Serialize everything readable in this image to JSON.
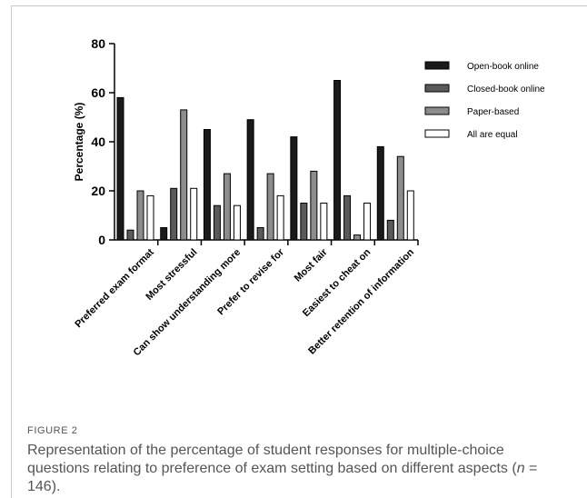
{
  "figure": {
    "label": "FIGURE 2",
    "caption_pre": "Representation of the percentage of student responses for multiple-choice questions relating to preference of exam setting based on different aspects (",
    "caption_var": "n",
    "caption_post": " = 146)."
  },
  "chart_data": {
    "type": "bar",
    "ylabel": "Percentage (%)",
    "ylim": [
      0,
      80
    ],
    "yticks": [
      0,
      20,
      40,
      60,
      80
    ],
    "legend_position": "top-right",
    "categories": [
      "Preferred exam format",
      "Most stressful",
      "Can show understanding more",
      "Prefer to revise for",
      "Most fair",
      "Easiest to cheat on",
      "Better retention of information"
    ],
    "series": [
      {
        "name": "Open-book online",
        "fill": "#1a1a1a",
        "values": [
          58,
          5,
          45,
          49,
          42,
          65,
          38
        ]
      },
      {
        "name": "Closed-book online",
        "fill": "#5a5a5a",
        "values": [
          4,
          21,
          14,
          5,
          15,
          18,
          8
        ]
      },
      {
        "name": "Paper-based",
        "fill": "#8c8c8c",
        "values": [
          20,
          53,
          27,
          27,
          28,
          2,
          34
        ]
      },
      {
        "name": "All are equal",
        "fill": "#ffffff",
        "values": [
          18,
          21,
          14,
          18,
          15,
          15,
          20
        ]
      }
    ]
  }
}
